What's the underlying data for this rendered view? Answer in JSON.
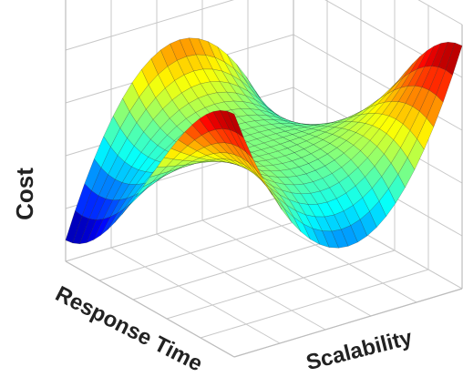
{
  "chart_data": {
    "type": "surface",
    "title": "",
    "xlabel": "Response Time",
    "ylabel": "Scalability",
    "zlabel": "Cost",
    "tick_labels": "none",
    "grid": true,
    "colormap": "jet",
    "surface": {
      "shape": "saddle (cubic ridge) surface",
      "x_range": [
        -1,
        1
      ],
      "y_range": [
        -1,
        1
      ],
      "z_range": [
        -1,
        1
      ],
      "resolution": 24,
      "function": "z = x^3 - 3*x*y^2"
    }
  }
}
